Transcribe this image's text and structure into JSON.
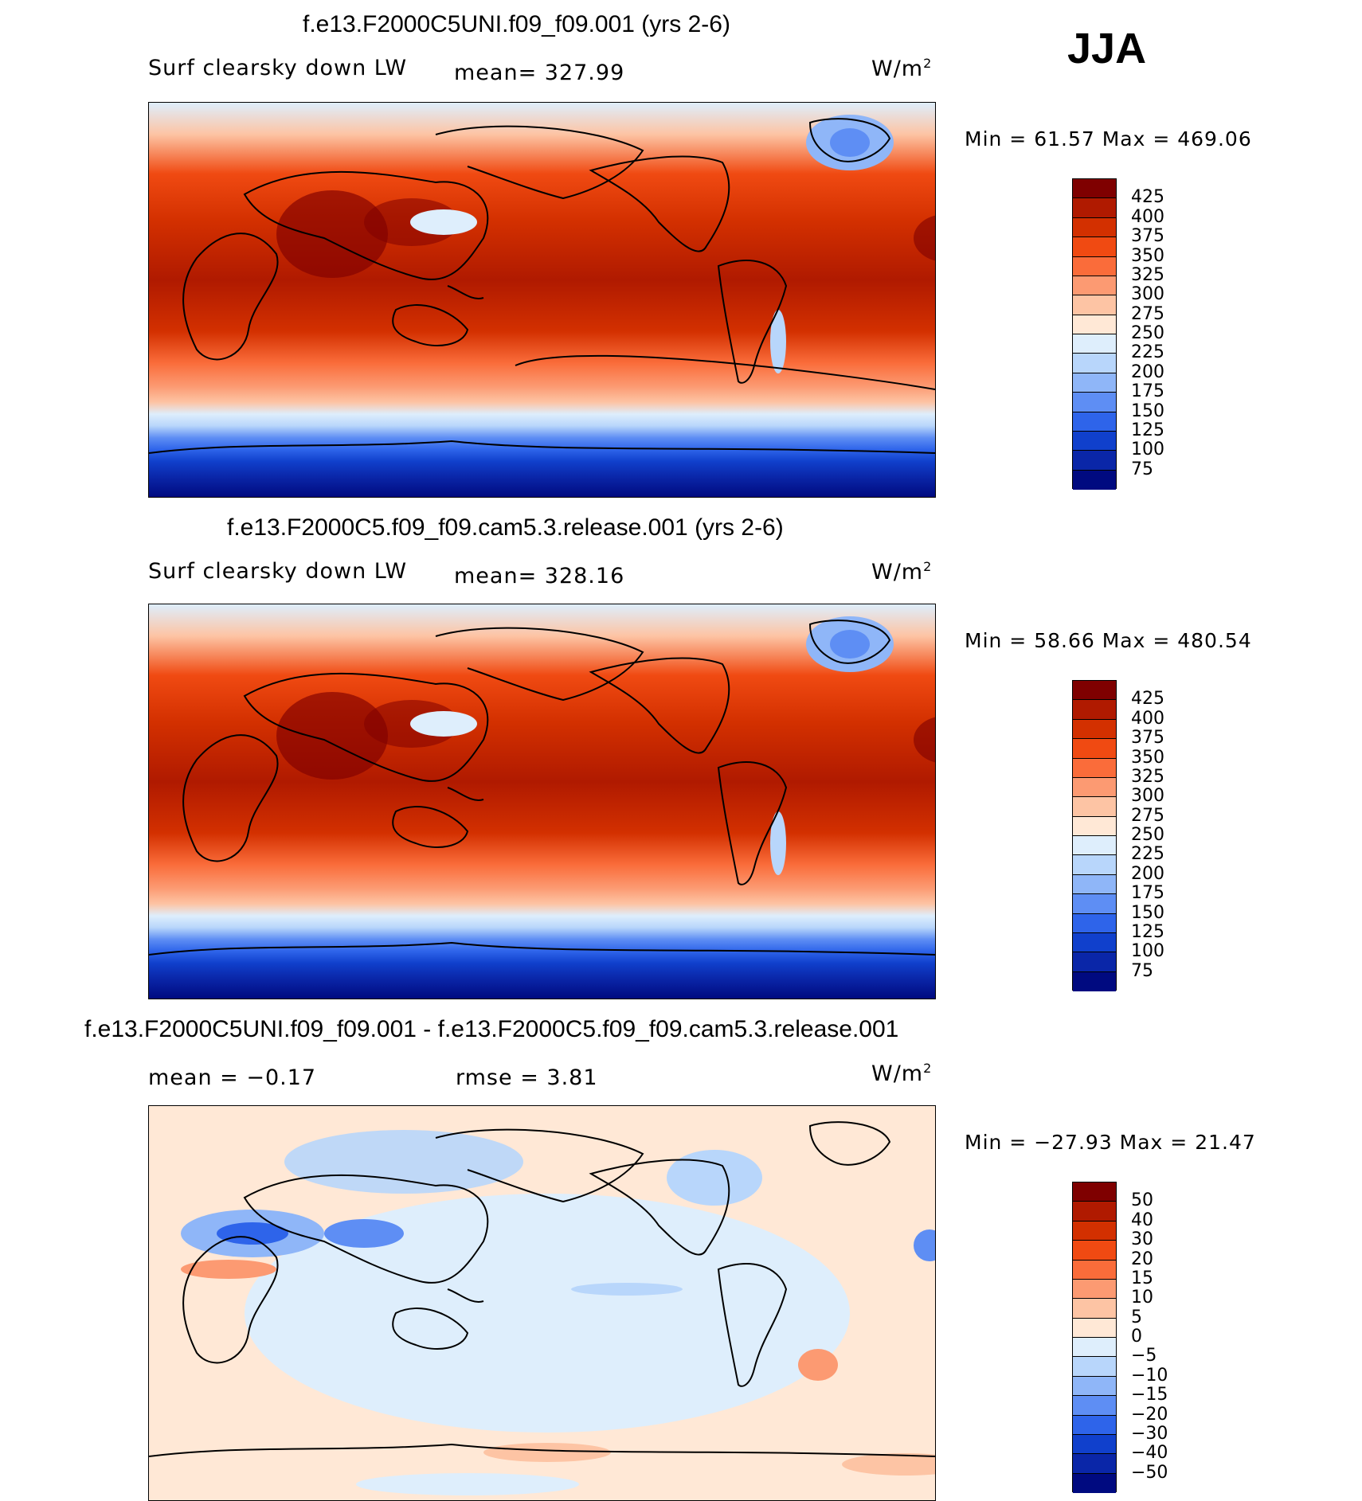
{
  "season": "JJA",
  "colorbars": {
    "abs": {
      "labels": [
        "425",
        "400",
        "375",
        "350",
        "325",
        "300",
        "275",
        "250",
        "225",
        "200",
        "175",
        "150",
        "125",
        "100",
        "75"
      ],
      "colors": [
        "#7f0000",
        "#b01a00",
        "#d33000",
        "#f04a12",
        "#fa6c3a",
        "#fc9a72",
        "#fdc4a4",
        "#ffe8d6",
        "#deeefc",
        "#b8d6fb",
        "#8fb6f8",
        "#5e8ef4",
        "#2e64ea",
        "#1040cc",
        "#0a26a8",
        "#000a80"
      ]
    },
    "diff": {
      "labels": [
        "50",
        "40",
        "30",
        "20",
        "15",
        "10",
        "5",
        "0",
        "−5",
        "−10",
        "−15",
        "−20",
        "−30",
        "−40",
        "−50"
      ],
      "colors": [
        "#7f0000",
        "#b01a00",
        "#d33000",
        "#f04a12",
        "#fa6c3a",
        "#fc9a72",
        "#fdc4a4",
        "#ffe8d6",
        "#deeefc",
        "#b8d6fb",
        "#8fb6f8",
        "#5e8ef4",
        "#2e64ea",
        "#1040cc",
        "#0a26a8",
        "#000a80"
      ]
    }
  },
  "panels": [
    {
      "title": "f.e13.F2000C5UNI.f09_f09.001 (yrs 2-6)",
      "variable": "Surf clearsky down LW",
      "mean_label": "mean= 327.99",
      "units": "W/m",
      "units_sup": "2",
      "minmax": "Min =   61.57  Max  =  469.06",
      "field_type": "absolute"
    },
    {
      "title": "f.e13.F2000C5.f09_f09.cam5.3.release.001 (yrs 2-6)",
      "variable": "Surf clearsky down LW",
      "mean_label": "mean= 328.16",
      "units": "W/m",
      "units_sup": "2",
      "minmax": "Min =   58.66  Max  =  480.54",
      "field_type": "absolute"
    },
    {
      "title": "f.e13.F2000C5UNI.f09_f09.001 - f.e13.F2000C5.f09_f09.cam5.3.release.001",
      "mean_label": "mean =   −0.17",
      "rmse_label": "rmse =     3.81",
      "units": "W/m",
      "units_sup": "2",
      "minmax": "Min = −27.93  Max  =   21.47",
      "field_type": "difference"
    }
  ]
}
